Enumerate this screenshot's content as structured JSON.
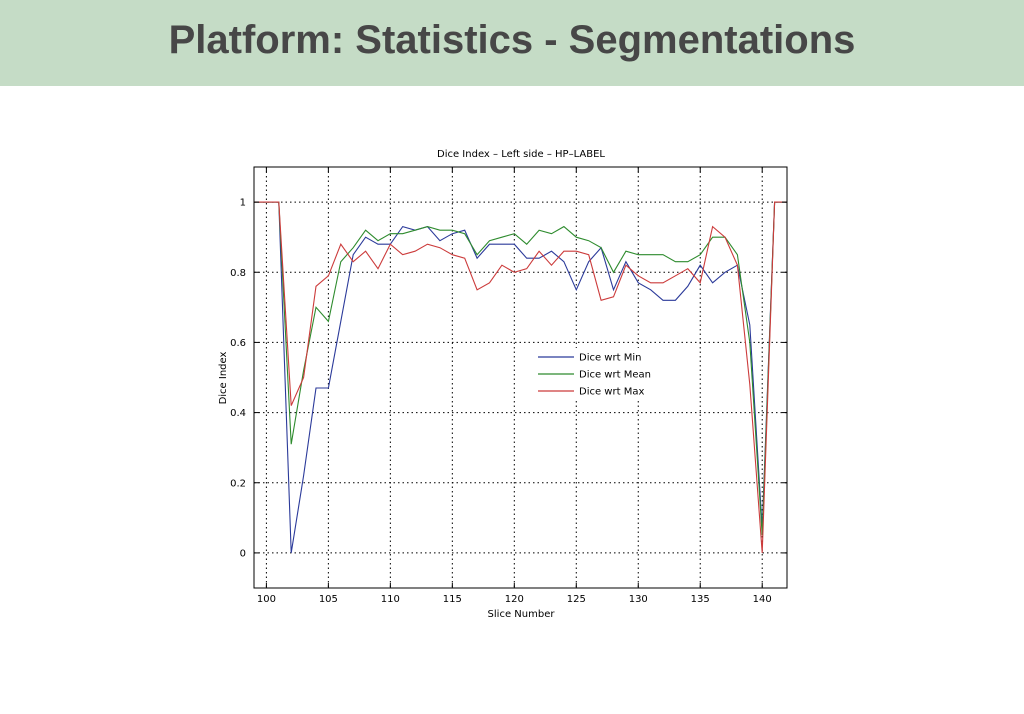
{
  "slide": {
    "title": "Platform: Statistics - Segmentations"
  },
  "chart_data": {
    "type": "line",
    "title": "Dice Index – Left side – HP–LABEL",
    "xlabel": "Slice Number",
    "ylabel": "Dice Index",
    "xlim": [
      99,
      142
    ],
    "ylim": [
      -0.1,
      1.1
    ],
    "xticks": [
      100,
      105,
      110,
      115,
      120,
      125,
      130,
      135,
      140
    ],
    "yticks": [
      0,
      0.2,
      0.4,
      0.6,
      0.8,
      1
    ],
    "ytick_labels": [
      "0",
      "0.2",
      "0.4",
      "0.6",
      "0.8",
      "1"
    ],
    "grid": true,
    "legend_position": "center-right",
    "x": [
      99,
      100,
      101,
      102,
      103,
      104,
      105,
      106,
      107,
      108,
      109,
      110,
      111,
      112,
      113,
      114,
      115,
      116,
      117,
      118,
      119,
      120,
      121,
      122,
      123,
      124,
      125,
      126,
      127,
      128,
      129,
      130,
      131,
      132,
      133,
      134,
      135,
      136,
      137,
      138,
      139,
      140,
      141,
      142
    ],
    "series": [
      {
        "name": "Dice wrt Min",
        "color": "#2b3a9a",
        "values": [
          1,
          1,
          1,
          0.0,
          0.22,
          0.47,
          0.47,
          0.66,
          0.85,
          0.9,
          0.88,
          0.88,
          0.93,
          0.92,
          0.93,
          0.89,
          0.91,
          0.92,
          0.84,
          0.88,
          0.88,
          0.88,
          0.84,
          0.84,
          0.86,
          0.83,
          0.75,
          0.83,
          0.87,
          0.75,
          0.83,
          0.77,
          0.75,
          0.72,
          0.72,
          0.76,
          0.82,
          0.77,
          0.8,
          0.82,
          0.65,
          0.07,
          1,
          1
        ]
      },
      {
        "name": "Dice wrt Mean",
        "color": "#2e8b2e",
        "values": [
          1,
          1,
          1,
          0.31,
          0.52,
          0.7,
          0.66,
          0.83,
          0.87,
          0.92,
          0.89,
          0.91,
          0.91,
          0.92,
          0.93,
          0.92,
          0.92,
          0.91,
          0.85,
          0.89,
          0.9,
          0.91,
          0.88,
          0.92,
          0.91,
          0.93,
          0.9,
          0.89,
          0.87,
          0.8,
          0.86,
          0.85,
          0.85,
          0.85,
          0.83,
          0.83,
          0.85,
          0.9,
          0.9,
          0.85,
          0.6,
          0.05,
          1,
          1
        ]
      },
      {
        "name": "Dice wrt Max",
        "color": "#cc3b3b",
        "values": [
          1,
          1,
          1,
          0.42,
          0.5,
          0.76,
          0.79,
          0.88,
          0.83,
          0.86,
          0.81,
          0.88,
          0.85,
          0.86,
          0.88,
          0.87,
          0.85,
          0.84,
          0.75,
          0.77,
          0.82,
          0.8,
          0.81,
          0.86,
          0.82,
          0.86,
          0.86,
          0.85,
          0.72,
          0.73,
          0.82,
          0.79,
          0.77,
          0.77,
          0.79,
          0.81,
          0.77,
          0.93,
          0.9,
          0.82,
          0.48,
          0.0,
          1,
          1
        ]
      }
    ]
  }
}
